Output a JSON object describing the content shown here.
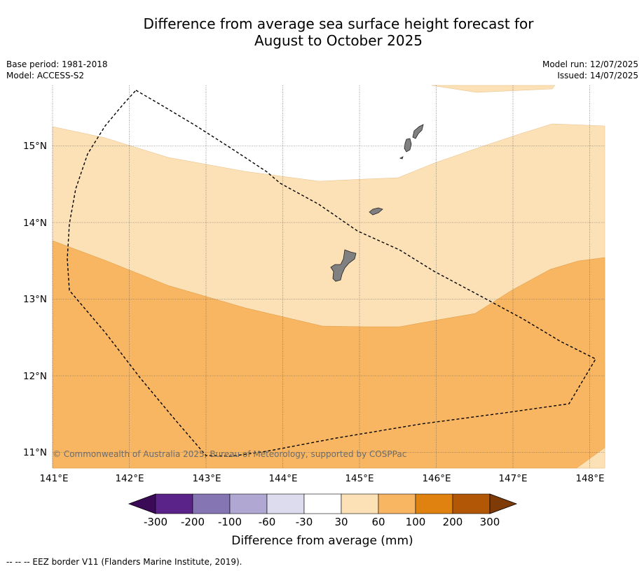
{
  "title": {
    "line1": "Difference from average sea surface height forecast for",
    "line2": "August to October 2025"
  },
  "meta_left": {
    "base_period": "Base period: 1981-2018",
    "model": "Model: ACCESS-S2"
  },
  "meta_right": {
    "model_run": "Model run: 12/07/2025",
    "issued": "Issued: 14/07/2025"
  },
  "map": {
    "lon_range": [
      141,
      148.2
    ],
    "lat_range": [
      10.8,
      15.8
    ],
    "lon_ticks": [
      "141°E",
      "142°E",
      "143°E",
      "144°E",
      "145°E",
      "146°E",
      "147°E",
      "148°E"
    ],
    "lat_ticks": [
      "15°N",
      "14°N",
      "13°N",
      "12°N",
      "11°N"
    ],
    "copyright": "© Commonwealth of Australia 2025, Bureau of Meteorology, supported by COSPPac"
  },
  "colorbar": {
    "labels": [
      "-300",
      "-200",
      "-100",
      "-60",
      "-30",
      "30",
      "60",
      "100",
      "200",
      "300"
    ],
    "colors": [
      "#3b0a57",
      "#5a2389",
      "#8575b3",
      "#b0a8d3",
      "#dcdcee",
      "#ffffff",
      "#fde1b6",
      "#f8b662",
      "#e0820f",
      "#b15706",
      "#7f3b07"
    ],
    "title": "Difference from average (mm)"
  },
  "footer": "--  --  -- EEZ border V11 (Flanders Marine Institute, 2019)."
}
